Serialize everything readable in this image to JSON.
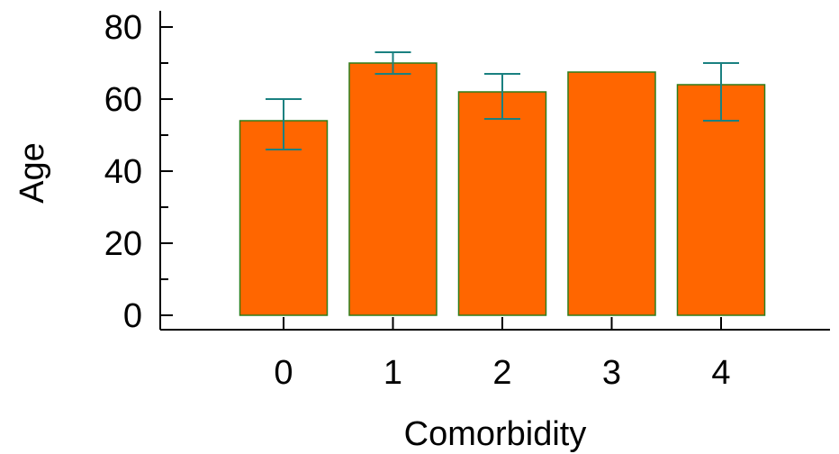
{
  "chart_data": {
    "type": "bar",
    "categories": [
      "0",
      "1",
      "2",
      "3",
      "4"
    ],
    "values": [
      54,
      70,
      62,
      67.5,
      64
    ],
    "error_low": [
      46,
      67,
      54.5,
      null,
      54
    ],
    "error_high": [
      60,
      73,
      67,
      null,
      70
    ],
    "xlabel": "Comorbidity",
    "ylabel": "Age",
    "ylim": [
      0,
      80
    ],
    "yticks": [
      0,
      20,
      40,
      60,
      80
    ],
    "grid": false,
    "colors": {
      "bar_fill": "#ff6600",
      "bar_stroke": "#2e7d1a",
      "error_bar": "#1a8080",
      "axis": "#000000"
    }
  }
}
